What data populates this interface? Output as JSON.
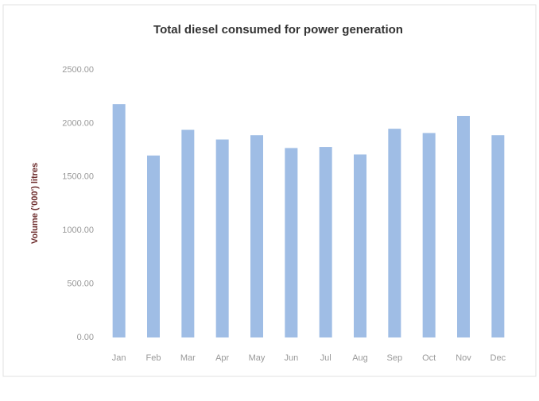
{
  "chart_data": {
    "type": "bar",
    "title": "Total diesel consumed for power generation",
    "y_label": "Volume ('000') litres",
    "categories": [
      "Jan",
      "Feb",
      "Mar",
      "Apr",
      "May",
      "Jun",
      "Jul",
      "Aug",
      "Sep",
      "Oct",
      "Nov",
      "Dec"
    ],
    "values": [
      2180,
      1700,
      1940,
      1850,
      1890,
      1770,
      1780,
      1710,
      1950,
      1910,
      2070,
      1890
    ],
    "color": "#9fbde5",
    "ylim": [
      0,
      2500
    ],
    "yticks": [
      {
        "value": 0,
        "label": "0.00"
      },
      {
        "value": 500,
        "label": "500.00"
      },
      {
        "value": 1000,
        "label": "1000.00"
      },
      {
        "value": 1500,
        "label": "1500.00"
      },
      {
        "value": 2000,
        "label": "2000.00"
      },
      {
        "value": 2500,
        "label": "2500.00"
      }
    ],
    "grid": false
  }
}
